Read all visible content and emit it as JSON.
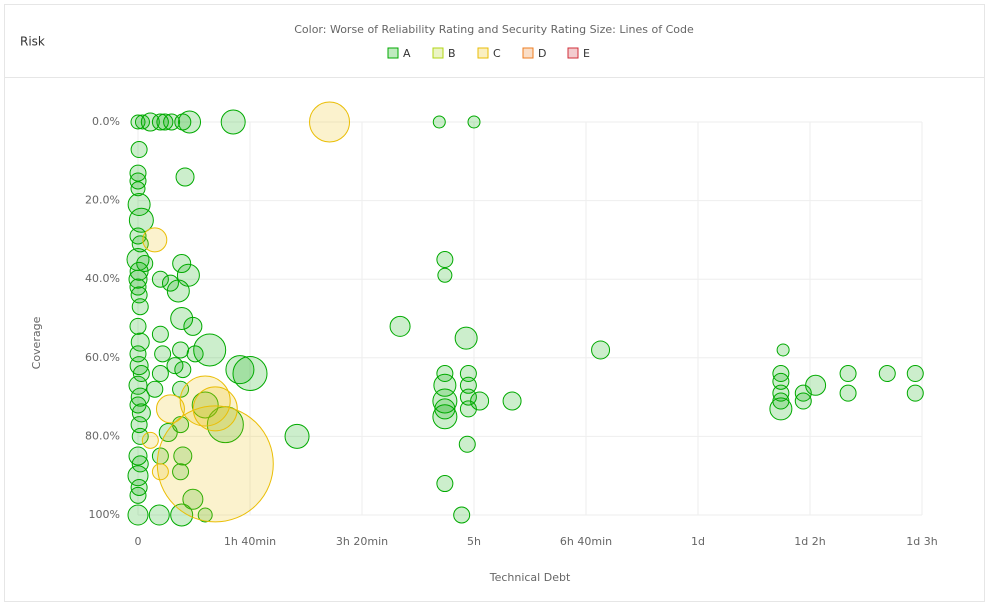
{
  "panel": {
    "title": "Risk"
  },
  "chart_data": {
    "type": "bubble",
    "subtitle": "Color: Worse of Reliability Rating and Security Rating   Size: Lines of Code",
    "x_label": "Technical Debt",
    "y_label": "Coverage",
    "xlim": [
      0,
      700
    ],
    "xticks": [
      0,
      {
        "value": 100,
        "label": "1h 40min"
      },
      {
        "value": 200,
        "label": "3h 20min"
      },
      {
        "value": 300,
        "label": "5h"
      },
      {
        "value": 400,
        "label": "6h 40min"
      },
      {
        "value": 500,
        "label": "1d"
      },
      {
        "value": 600,
        "label": "1d 2h"
      },
      {
        "value": 700,
        "label": "1d 3h"
      }
    ],
    "ylim": [
      0,
      100
    ],
    "y_inverted": true,
    "yticks": [
      {
        "value": 0,
        "label": "0.0%"
      },
      {
        "value": 20,
        "label": "20.0%"
      },
      {
        "value": 40,
        "label": "40.0%"
      },
      {
        "value": 60,
        "label": "60.0%"
      },
      {
        "value": 80,
        "label": "80.0%"
      },
      {
        "value": 100,
        "label": "100%"
      }
    ],
    "grid": true,
    "series": [
      {
        "name": "A",
        "color": "#00aa00",
        "x": [
          0,
          4,
          11,
          20,
          24,
          30,
          40,
          46,
          85,
          269,
          300,
          1,
          0,
          0,
          0,
          1,
          3,
          0,
          2,
          0,
          1,
          0,
          0,
          1,
          2,
          0,
          2,
          0,
          1,
          3,
          0,
          2,
          0,
          3,
          1,
          2,
          0,
          2,
          0,
          1,
          0,
          0,
          19,
          42,
          39,
          45,
          36,
          6,
          20,
          29,
          39,
          49,
          64,
          20,
          22,
          38,
          51,
          33,
          20,
          40,
          91,
          100,
          15,
          38,
          60,
          78,
          27,
          38,
          40,
          20,
          38,
          49,
          39,
          60,
          142,
          234,
          413,
          293,
          274,
          274,
          274,
          274,
          274,
          274,
          274,
          295,
          295,
          295,
          295,
          305,
          334,
          294,
          274,
          289,
          576,
          574,
          574,
          574,
          574,
          574,
          594,
          594,
          605,
          634,
          634,
          669,
          694,
          694
        ],
        "values": [
          0,
          0,
          0,
          0,
          0,
          0,
          0,
          0,
          0,
          0,
          0,
          7,
          13,
          15,
          17,
          21,
          25,
          29,
          31,
          35,
          38,
          40,
          42,
          44,
          47,
          52,
          56,
          59,
          62,
          64,
          67,
          70,
          72,
          74,
          77,
          80,
          85,
          87,
          90,
          93,
          95,
          100,
          100,
          14,
          36,
          39,
          43,
          36,
          40,
          41,
          50,
          52,
          58,
          54,
          59,
          58,
          59,
          62,
          64,
          63,
          63,
          64,
          68,
          68,
          72,
          77,
          79,
          77,
          85,
          85,
          89,
          96,
          100,
          100,
          80,
          52,
          58,
          55,
          35,
          39,
          64,
          67,
          71,
          75,
          73,
          64,
          67,
          70,
          73,
          71,
          71,
          82,
          92,
          100,
          58,
          64,
          66,
          69,
          71,
          73,
          69,
          71,
          67,
          64,
          69,
          64,
          64,
          69
        ],
        "sizes": [
          16,
          16,
          64,
          36,
          36,
          36,
          36,
          144,
          196,
          4,
          4,
          36,
          36,
          36,
          16,
          144,
          196,
          36,
          36,
          144,
          64,
          64,
          36,
          36,
          36,
          36,
          64,
          36,
          64,
          36,
          64,
          64,
          36,
          64,
          36,
          36,
          64,
          36,
          100,
          36,
          36,
          100,
          100,
          64,
          64,
          144,
          144,
          36,
          36,
          36,
          144,
          64,
          484,
          36,
          36,
          36,
          36,
          36,
          36,
          36,
          324,
          576,
          36,
          36,
          256,
          676,
          64,
          36,
          64,
          36,
          36,
          100,
          144,
          16,
          196,
          100,
          64,
          144,
          36,
          16,
          36,
          144,
          196,
          196,
          100,
          36,
          36,
          36,
          36,
          64,
          64,
          36,
          36,
          36,
          4,
          36,
          36,
          36,
          36,
          144,
          36,
          36,
          100,
          36,
          36,
          36,
          36,
          36
        ]
      },
      {
        "name": "B",
        "color": "#b0d513",
        "x": [],
        "values": [],
        "sizes": []
      },
      {
        "name": "C",
        "color": "#eabe06",
        "x": [
          171,
          15,
          69,
          60,
          69,
          29,
          11,
          20
        ],
        "values": [
          0,
          30,
          87,
          71,
          73,
          73,
          81,
          89
        ],
        "sizes": [
          900,
          196,
          11236,
          1600,
          1156,
          324,
          36,
          36
        ]
      },
      {
        "name": "D",
        "color": "#ed7d20",
        "x": [],
        "values": [],
        "sizes": []
      },
      {
        "name": "E",
        "color": "#d02f3a",
        "x": [],
        "values": [],
        "sizes": []
      }
    ]
  }
}
